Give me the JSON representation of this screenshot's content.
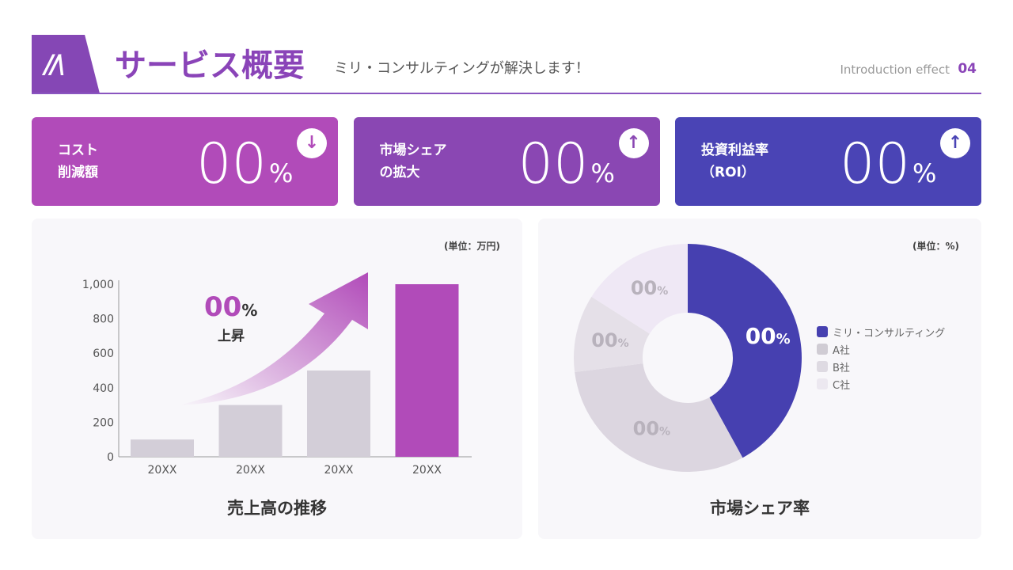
{
  "header": {
    "logo": "M",
    "title": "サービス概要",
    "subtitle": "ミリ・コンサルティングが解決します！",
    "section": "Introduction effect",
    "page": "04"
  },
  "kpis": [
    {
      "label": "コスト\n削減額",
      "value": "00",
      "unit": "%",
      "icon": "arrow-down-icon",
      "color": "#b14bb9"
    },
    {
      "label": "市場シェア\nの拡大",
      "value": "00",
      "unit": "%",
      "icon": "arrow-up-icon",
      "color": "#8a47b3"
    },
    {
      "label": "投資利益率\n（ROI）",
      "value": "00",
      "unit": "%",
      "icon": "arrow-up-icon",
      "color": "#4a44b5"
    }
  ],
  "colors": {
    "accent": "#b14bb9",
    "bar": "#d3ced8",
    "pie_main": "#4640b0"
  },
  "sales": {
    "unit": "(単位：万円)",
    "title": "売上高の推移",
    "growth_value": "00",
    "growth_unit": "%",
    "growth_label": "上昇"
  },
  "share": {
    "unit": "(単位：%)",
    "title": "市場シェア率"
  },
  "chart_data": [
    {
      "type": "bar",
      "categories": [
        "20XX",
        "20XX",
        "20XX",
        "20XX"
      ],
      "values": [
        100,
        300,
        500,
        1000
      ],
      "ylim": [
        0,
        1000
      ],
      "yticks": [
        "0",
        "200",
        "400",
        "600",
        "800",
        "1,000"
      ],
      "colors": [
        "#d3ced8",
        "#d3ced8",
        "#d3ced8",
        "#b14bb9"
      ]
    },
    {
      "type": "pie",
      "donut": true,
      "series": [
        {
          "name": "ミリ・コンサルティング",
          "value": 42,
          "label": "00",
          "color": "#4640b0"
        },
        {
          "name": "B社",
          "value": 31,
          "label": "00",
          "color": "#dcd6e0"
        },
        {
          "name": "A社",
          "value": 11,
          "label": "00",
          "color": "#e5e0e8"
        },
        {
          "name": "C社",
          "value": 16,
          "label": "00",
          "color": "#efe8f5"
        }
      ],
      "legend": [
        {
          "name": "ミリ・コンサルティング",
          "color": "#4640b0"
        },
        {
          "name": "A社",
          "color": "#d0ccd4"
        },
        {
          "name": "B社",
          "color": "#dedae2"
        },
        {
          "name": "C社",
          "color": "#ece8f0"
        }
      ],
      "legend_position": "right"
    }
  ]
}
